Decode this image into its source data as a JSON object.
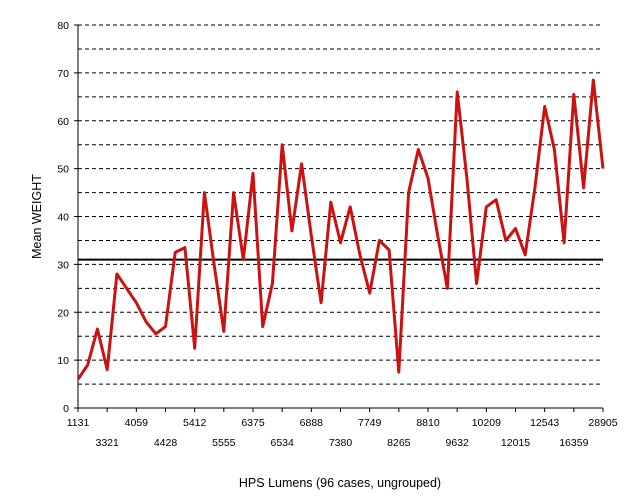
{
  "chart_data": {
    "type": "line",
    "xlabel": "HPS Lumens (96 cases, ungrouped)",
    "ylabel": "Mean WEIGHT",
    "ylim": [
      0,
      80
    ],
    "yticks": [
      0,
      10,
      20,
      30,
      40,
      50,
      60,
      70,
      80
    ],
    "grid": "dashed horizontal every 5",
    "reference_line": 31,
    "x_tick_labels_top": [
      "1131",
      "4059",
      "5412",
      "6375",
      "6888",
      "7749",
      "8810",
      "10209",
      "12543",
      "28905"
    ],
    "x_tick_labels_bottom": [
      "3321",
      "4428",
      "5555",
      "6534",
      "7380",
      "8265",
      "9632",
      "12015",
      "16359"
    ],
    "series": [
      {
        "color": "#cc1111",
        "values": [
          6,
          9,
          16.5,
          8,
          28,
          25,
          22,
          18,
          15.5,
          17,
          32.5,
          33.5,
          12.5,
          45,
          30,
          16,
          45,
          31,
          49,
          17,
          26,
          55,
          37,
          51,
          36,
          22,
          43,
          34.5,
          42,
          32,
          24,
          35,
          33,
          7.5,
          45,
          54,
          48,
          36,
          25,
          66,
          48,
          26,
          42,
          43.5,
          35,
          37.5,
          32,
          46,
          63,
          54,
          34.5,
          65.5,
          46,
          68.5,
          50
        ]
      }
    ]
  }
}
